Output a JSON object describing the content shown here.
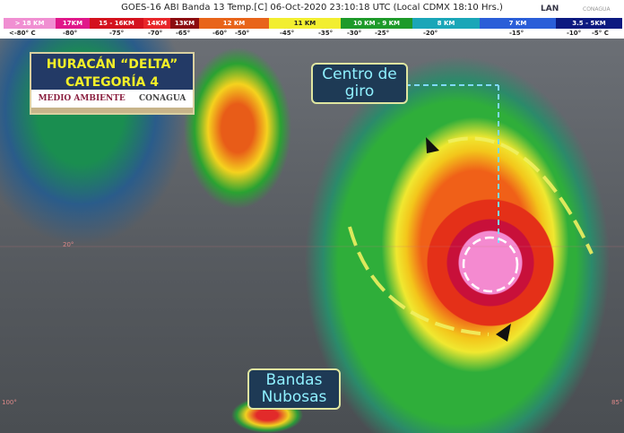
{
  "header": {
    "title": "GOES-16 ABI Banda 13 Temp.[C] 06-Oct-2020 23:10:18 UTC (Local CDMX  18:10 Hrs.)",
    "logo_lan": "LAN",
    "logo_conagua": "CONAGUA"
  },
  "scale": [
    {
      "label": "> 18 KM",
      "color": "#f08fd2"
    },
    {
      "label": "17KM",
      "color": "#e0188a"
    },
    {
      "label": "15 - 16KM",
      "color": "#d4121e"
    },
    {
      "label": "14KM",
      "color": "#e8262a"
    },
    {
      "label": "13KM",
      "color": "#8c0c10"
    },
    {
      "label": "12 KM",
      "color": "#e8641a"
    },
    {
      "label": "11 KM",
      "color": "#f2ee30"
    },
    {
      "label": "10 KM -  9 KM",
      "color": "#1e9a2a"
    },
    {
      "label": "8 KM",
      "color": "#1aa6b8"
    },
    {
      "label": "7 KM",
      "color": "#2a5ed8"
    },
    {
      "label": "3.5 - 5KM",
      "color": "#0c1a80"
    }
  ],
  "temps": [
    "<-80° C",
    "-80°",
    "-75°",
    "-70°",
    "-65°",
    "-60°",
    "-50°",
    "-45°",
    "-35°",
    "-30°",
    "-25°",
    "-20°",
    "-15°",
    "-10°",
    "-5° C"
  ],
  "panel": {
    "title_line1": "HURACÁN “DELTA”",
    "title_line2": "CATEGORÍA 4",
    "logo_left": "MEDIO AMBIENTE",
    "logo_right": "CONAGUA"
  },
  "annotations": {
    "center_label": "Centro de giro",
    "bands_label": "Bandas Nubosas"
  },
  "grid_labels": {
    "lat20": "20°",
    "left_lon": "100°",
    "right_lon": "85°"
  }
}
